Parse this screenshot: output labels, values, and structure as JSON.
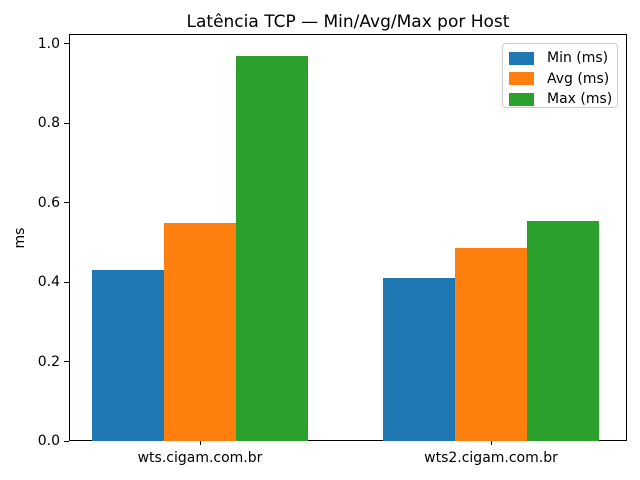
{
  "chart_data": {
    "type": "bar",
    "title": "Latência TCP — Min/Avg/Max por Host",
    "xlabel": "",
    "ylabel": "ms",
    "categories": [
      "wts.cigam.com.br",
      "wts2.cigam.com.br"
    ],
    "series": [
      {
        "name": "Min (ms)",
        "color": "#1f77b4",
        "values": [
          0.43,
          0.41
        ]
      },
      {
        "name": "Avg (ms)",
        "color": "#ff7f0e",
        "values": [
          0.55,
          0.485
        ]
      },
      {
        "name": "Max (ms)",
        "color": "#2ca02c",
        "values": [
          0.97,
          0.555
        ]
      }
    ],
    "ylim": [
      0,
      1.025
    ],
    "yticks": [
      "0.0",
      "0.2",
      "0.4",
      "0.6",
      "0.8",
      "1.0"
    ],
    "legend_position": "upper right",
    "grid": false,
    "axis_color": "#000000",
    "legend_border_color": "#cccccc",
    "background_color": "#ffffff"
  }
}
